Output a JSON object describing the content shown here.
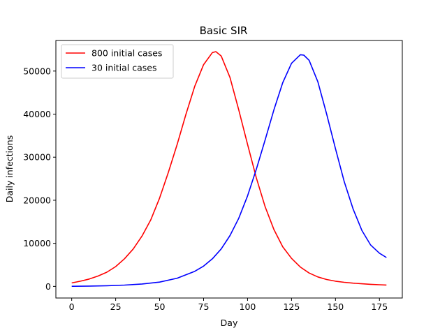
{
  "chart_data": {
    "type": "line",
    "title": "Basic SIR",
    "xlabel": "Day",
    "ylabel": "Daily infections",
    "xlim": [
      -9,
      188
    ],
    "ylim": [
      -2700,
      57100
    ],
    "xticks": [
      0,
      25,
      50,
      75,
      100,
      125,
      150,
      175
    ],
    "yticks": [
      0,
      10000,
      20000,
      30000,
      40000,
      50000
    ],
    "grid": false,
    "legend_position": "top-left",
    "series": [
      {
        "name": "800 initial cases",
        "color": "#ff0000",
        "x": [
          0,
          5,
          10,
          15,
          20,
          25,
          30,
          35,
          40,
          45,
          50,
          55,
          60,
          65,
          70,
          75,
          80,
          82,
          85,
          90,
          95,
          100,
          105,
          110,
          115,
          120,
          125,
          130,
          135,
          140,
          145,
          150,
          155,
          160,
          165,
          170,
          175,
          179
        ],
        "y": [
          800,
          1200,
          1700,
          2400,
          3300,
          4600,
          6400,
          8700,
          11700,
          15500,
          20500,
          26500,
          33000,
          40000,
          46500,
          51500,
          54300,
          54500,
          53500,
          48500,
          41000,
          33000,
          25200,
          18500,
          13200,
          9200,
          6500,
          4500,
          3100,
          2200,
          1600,
          1200,
          950,
          750,
          600,
          480,
          380,
          320
        ]
      },
      {
        "name": "30 initial cases",
        "color": "#0000ff",
        "x": [
          0,
          10,
          20,
          30,
          40,
          50,
          60,
          70,
          75,
          80,
          85,
          90,
          95,
          100,
          105,
          110,
          115,
          120,
          125,
          130,
          132,
          135,
          140,
          145,
          150,
          155,
          160,
          165,
          170,
          175,
          179
        ],
        "y": [
          30,
          70,
          150,
          300,
          550,
          1000,
          1900,
          3500,
          4700,
          6400,
          8700,
          11800,
          15800,
          21000,
          27200,
          34000,
          41000,
          47300,
          51800,
          53800,
          53700,
          52500,
          47500,
          40000,
          32000,
          24300,
          18000,
          13000,
          9600,
          7700,
          6700
        ]
      }
    ]
  }
}
